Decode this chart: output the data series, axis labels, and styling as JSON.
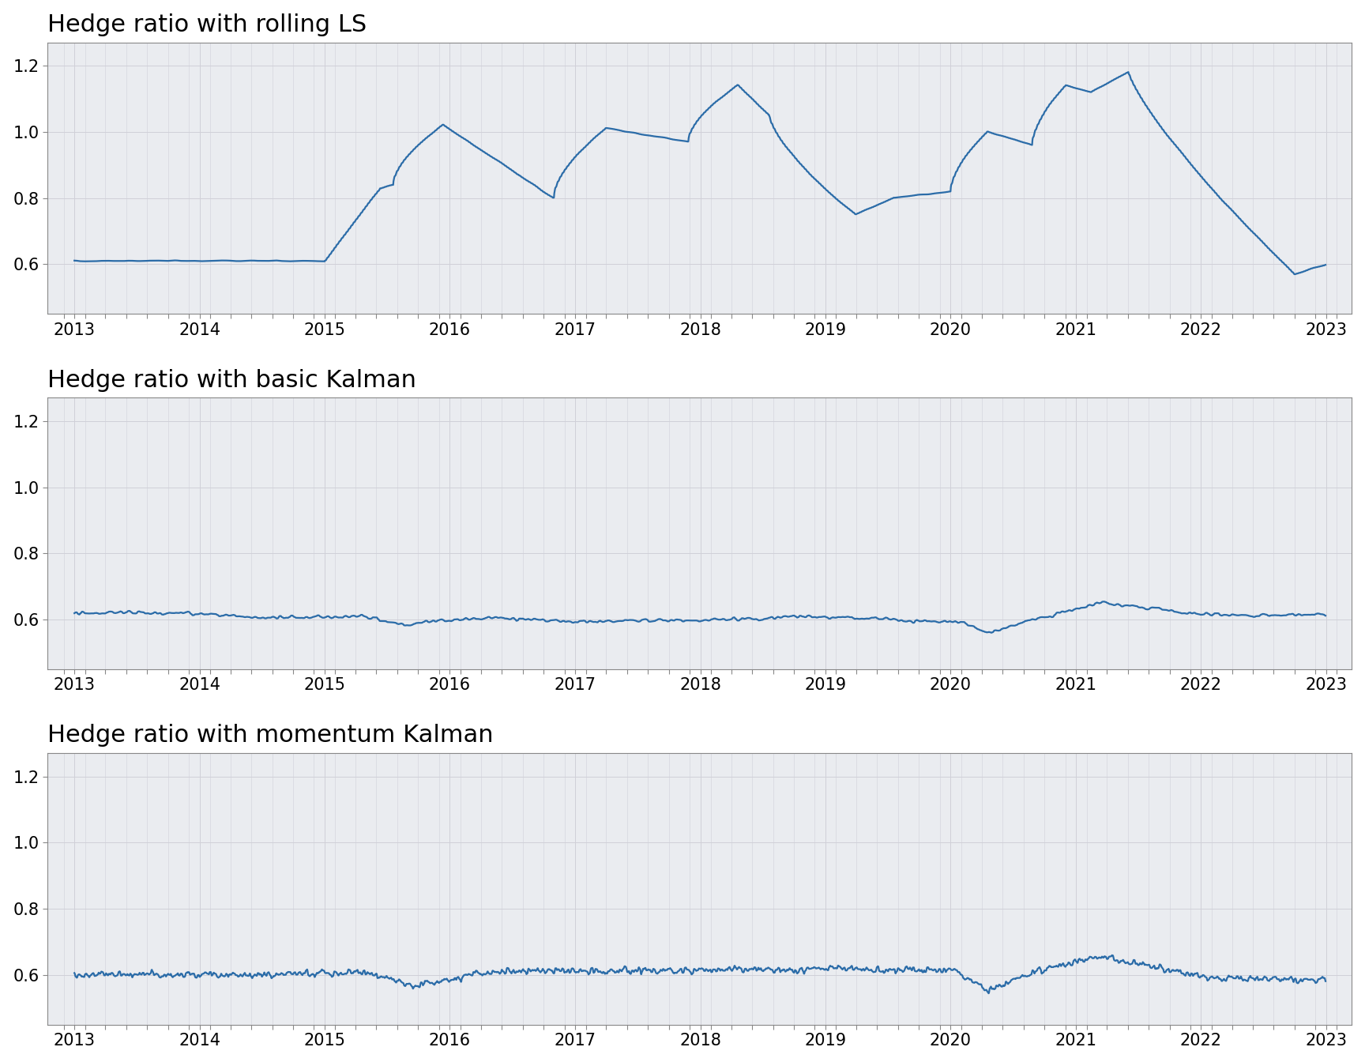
{
  "titles": [
    "Hedge ratio with rolling LS",
    "Hedge ratio with basic Kalman",
    "Hedge ratio with momentum Kalman"
  ],
  "line_color": "#2b6ca8",
  "background_color": "#ffffff",
  "plot_bg_color": "#eaecf0",
  "ylim": [
    0.45,
    1.27
  ],
  "yticks": [
    0.6,
    0.8,
    1.0,
    1.2
  ],
  "xticks": [
    2013,
    2014,
    2015,
    2016,
    2017,
    2018,
    2019,
    2020,
    2021,
    2022,
    2023
  ],
  "figsize": [
    17.28,
    13.44
  ],
  "dpi": 100,
  "title_fontsize": 22,
  "tick_fontsize": 15,
  "line_width": 1.6,
  "grid_color": "#d0d0d8",
  "grid_linewidth": 0.7,
  "minor_grid_color": "#d8d8e0",
  "spine_color": "#888888"
}
